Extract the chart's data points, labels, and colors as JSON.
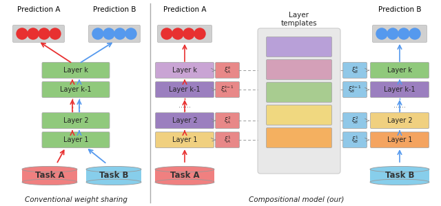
{
  "fig_width": 6.4,
  "fig_height": 2.99,
  "bg_color": "#ffffff",
  "left": {
    "title_A": "Prediction A",
    "title_B": "Prediction B",
    "layers": [
      "Layer k",
      "Layer k-1",
      "Layer 2",
      "Layer 1"
    ],
    "layer_color": "#90c97c",
    "taskA_label": "Task A",
    "taskB_label": "Task B",
    "taskA_color": "#f08080",
    "taskB_color": "#87ceeb",
    "dot_red": "#e83030",
    "dot_blue": "#5599ee",
    "caption": "Conventional weight sharing"
  },
  "right": {
    "title_A": "Prediction A",
    "title_B": "Prediction B",
    "template_title": "Layer\ntemplates",
    "layer_labels": [
      "Layer k",
      "Layer k-1",
      "Layer 2",
      "Layer 1"
    ],
    "layer_colors_A": [
      "#c9a4d4",
      "#9b7fbf",
      "#9b7fbf",
      "#f0d080"
    ],
    "layer_colors_B": [
      "#90c97c",
      "#9b7fbf",
      "#f0d080",
      "#f4a460"
    ],
    "template_colors": [
      "#b8a0d8",
      "#d4a0b8",
      "#a8cc90",
      "#f0d880",
      "#f4b060"
    ],
    "taskA_label": "Task A",
    "taskB_label": "Task B",
    "taskA_color": "#f08080",
    "taskB_color": "#87ceeb",
    "xi_color_A": "#e88888",
    "xi_color_B": "#90c8e8",
    "caption": "Compositional model (our)"
  }
}
